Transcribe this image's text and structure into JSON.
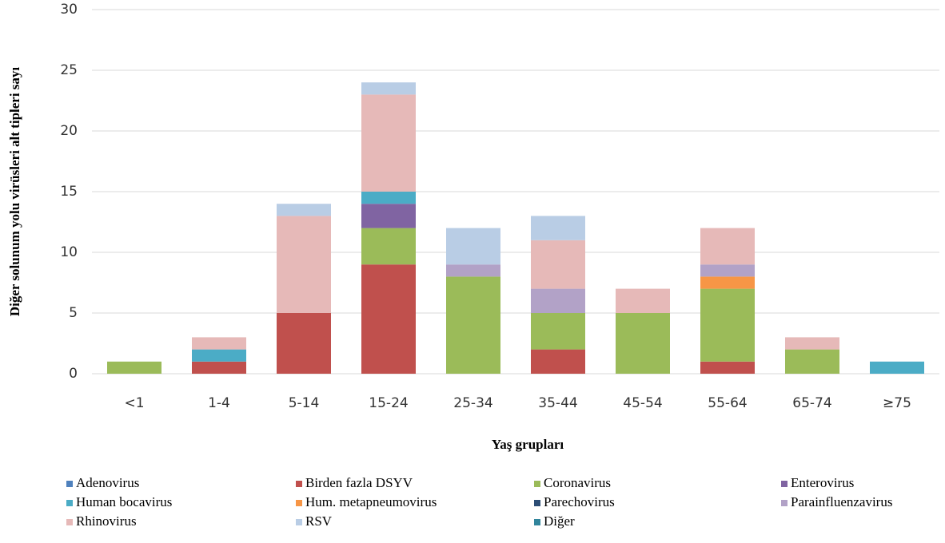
{
  "chart_data": {
    "type": "stacked_bar",
    "y_label": "Diğer solunum yolu virüsleri alt tipleri sayı",
    "x_label": "Yaş grupları",
    "categories": [
      "<1",
      "1-4",
      "5-14",
      "15-24",
      "25-34",
      "35-44",
      "45-54",
      "55-64",
      "65-74",
      "≥75"
    ],
    "series": [
      {
        "name": "Adenovirus",
        "color": "#4f81bd",
        "values": [
          0,
          0,
          0,
          0,
          0,
          0,
          0,
          0,
          0,
          0
        ]
      },
      {
        "name": "Birden fazla DSYV",
        "color": "#c0504d",
        "values": [
          0,
          1,
          5,
          9,
          0,
          2,
          0,
          1,
          0,
          0
        ]
      },
      {
        "name": "Coronavirus",
        "color": "#9bbb59",
        "values": [
          1,
          0,
          0,
          3,
          8,
          3,
          5,
          6,
          2,
          0
        ]
      },
      {
        "name": "Enterovirus",
        "color": "#8064a2",
        "values": [
          0,
          0,
          0,
          2,
          0,
          0,
          0,
          0,
          0,
          0
        ]
      },
      {
        "name": "Human bocavirus",
        "color": "#4bacc6",
        "values": [
          0,
          1,
          0,
          1,
          0,
          0,
          0,
          0,
          0,
          1
        ]
      },
      {
        "name": "Hum. metapneumovirus",
        "color": "#f79646",
        "values": [
          0,
          0,
          0,
          0,
          0,
          0,
          0,
          1,
          0,
          0
        ]
      },
      {
        "name": "Parechovirus",
        "color": "#2c4d75",
        "values": [
          0,
          0,
          0,
          0,
          0,
          0,
          0,
          0,
          0,
          0
        ]
      },
      {
        "name": "Parainfluenzavirus",
        "color": "#b2a2c7",
        "values": [
          0,
          0,
          0,
          0,
          1,
          2,
          0,
          1,
          0,
          0
        ]
      },
      {
        "name": "Rhinovirus",
        "color": "#e6b9b8",
        "values": [
          0,
          1,
          8,
          8,
          0,
          4,
          2,
          3,
          1,
          0
        ]
      },
      {
        "name": "RSV",
        "color": "#b9cde5",
        "values": [
          0,
          0,
          1,
          1,
          3,
          2,
          0,
          0,
          0,
          0
        ]
      },
      {
        "name": "Diğer",
        "color": "#31859c",
        "values": [
          0,
          0,
          0,
          0,
          0,
          0,
          0,
          0,
          0,
          0
        ]
      }
    ],
    "ylim": [
      0,
      30
    ],
    "yticks": [
      0,
      5,
      10,
      15,
      20,
      25,
      30
    ],
    "grid": true
  }
}
